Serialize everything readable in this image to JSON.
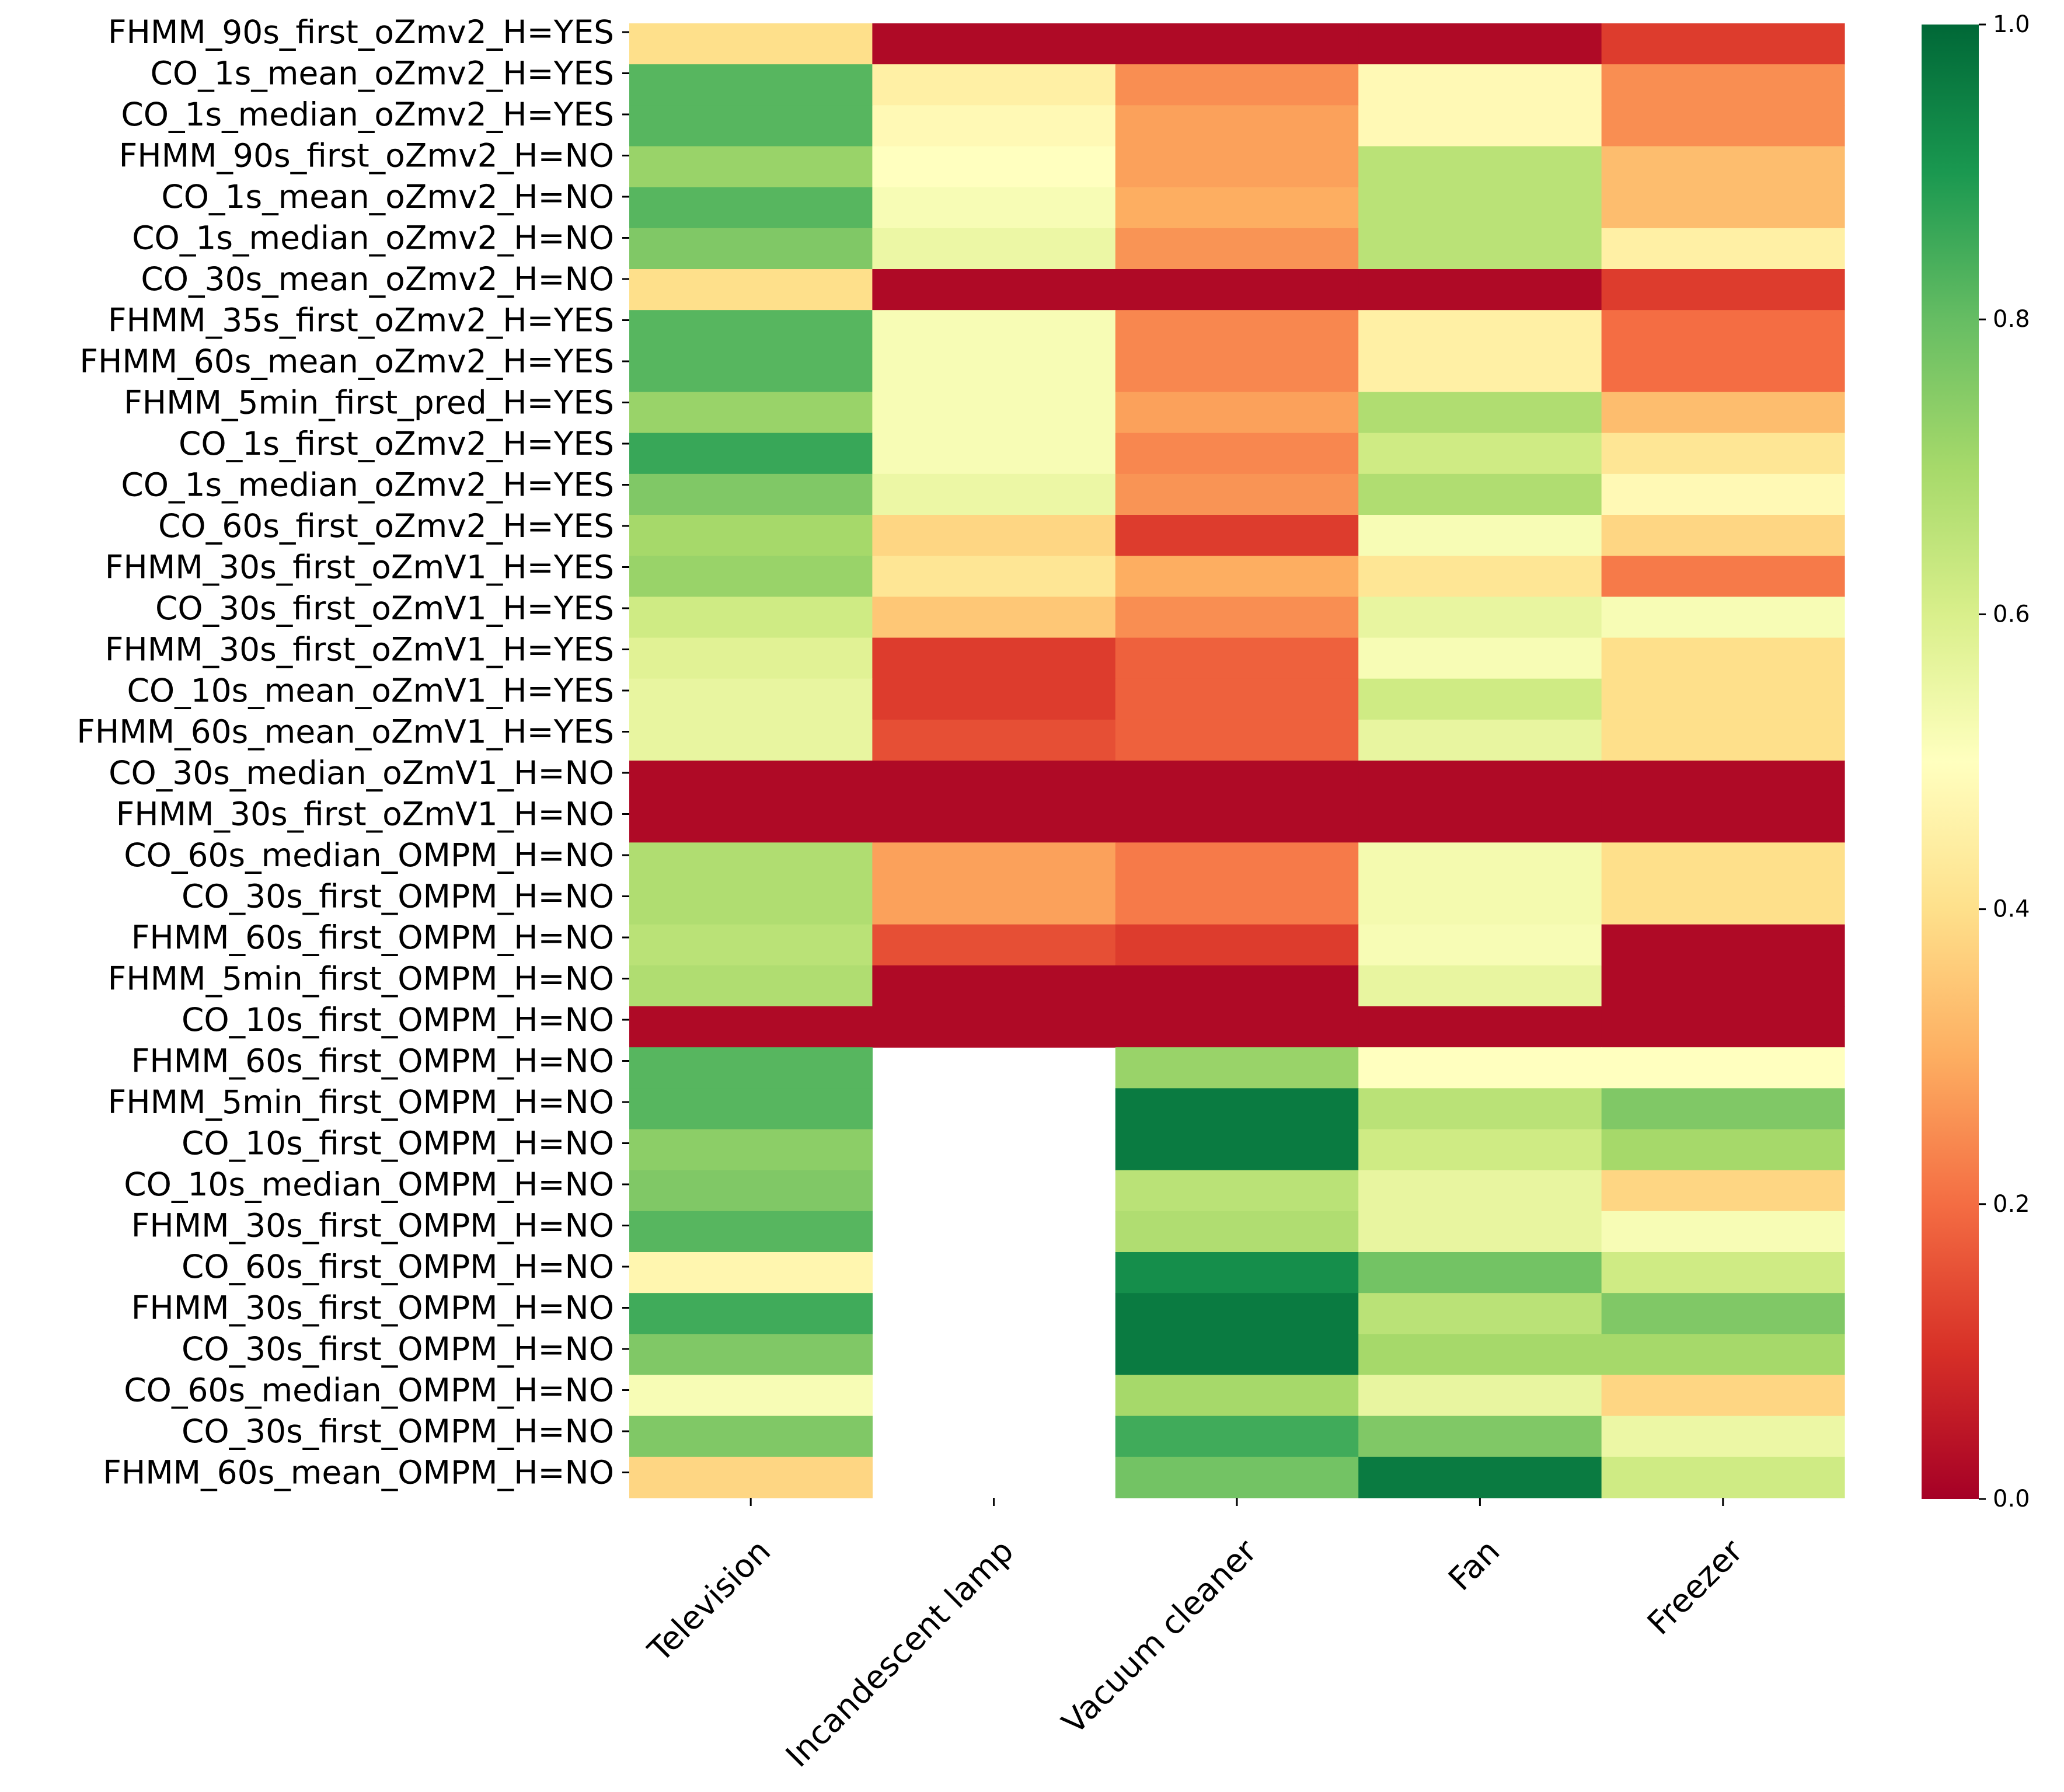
{
  "chart_data": {
    "type": "heatmap",
    "title": "",
    "xlabel": "",
    "ylabel": "",
    "colormap": "RdYlGn",
    "colormap_stops": [
      "#a50026",
      "#d73027",
      "#f46d43",
      "#fdae61",
      "#fee08b",
      "#ffffbf",
      "#d9ef8b",
      "#a6d96a",
      "#66bd63",
      "#1a9850",
      "#006837"
    ],
    "value_range": [
      0.0,
      1.0
    ],
    "colorbar_ticks": [
      "0.0",
      "0.2",
      "0.4",
      "0.6",
      "0.8",
      "1.0"
    ],
    "colorbar_tick_values": [
      0.0,
      0.2,
      0.4,
      0.6,
      0.8,
      1.0
    ],
    "columns": [
      "Television",
      "Incandescent lamp",
      "Vacuum cleaner",
      "Fan",
      "Freezer"
    ],
    "row_labels": [
      "FHMM_90s_first_oZmv2_H=YES",
      "CO_1s_mean_oZmv2_H=YES",
      "CO_1s_median_oZmv2_H=YES",
      "FHMM_90s_first_oZmv2_H=NO",
      "CO_1s_mean_oZmv2_H=NO",
      "CO_1s_median_oZmv2_H=NO",
      "CO_30s_mean_oZmv2_H=NO",
      "FHMM_35s_first_oZmv2_H=YES",
      "FHMM_60s_mean_oZmv2_H=YES",
      "FHMM_5min_first_pred_H=YES",
      "CO_1s_first_oZmv2_H=YES",
      "CO_1s_median_oZmv2_H=YES",
      "CO_60s_first_oZmv2_H=YES",
      "FHMM_30s_first_oZmV1_H=YES",
      "CO_30s_first_oZmV1_H=YES",
      "FHMM_30s_first_oZmV1_H=YES",
      "CO_10s_mean_oZmV1_H=YES",
      "FHMM_60s_mean_oZmV1_H=YES",
      "CO_30s_median_oZmV1_H=NO",
      "FHMM_30s_first_oZmV1_H=NO",
      "CO_60s_median_OMPM_H=NO",
      "CO_30s_first_OMPM_H=NO",
      "FHMM_60s_first_OMPM_H=NO",
      "FHMM_5min_first_OMPM_H=NO",
      "CO_10s_first_OMPM_H=NO",
      "FHMM_60s_first_OMPM_H=NO",
      "FHMM_5min_first_OMPM_H=NO",
      "CO_10s_first_OMPM_H=NO",
      "CO_10s_median_OMPM_H=NO",
      "FHMM_30s_first_OMPM_H=NO",
      "CO_60s_first_OMPM_H=NO",
      "FHMM_30s_first_OMPM_H=NO",
      "CO_30s_first_OMPM_H=NO",
      "CO_60s_median_OMPM_H=NO",
      "CO_30s_first_OMPM_H=NO",
      "FHMM_60s_mean_OMPM_H=NO"
    ],
    "values": [
      [
        0.4,
        0.02,
        0.02,
        0.02,
        0.12
      ],
      [
        0.82,
        0.45,
        0.25,
        0.48,
        0.25
      ],
      [
        0.82,
        0.48,
        0.28,
        0.48,
        0.25
      ],
      [
        0.72,
        0.5,
        0.28,
        0.66,
        0.33
      ],
      [
        0.82,
        0.52,
        0.3,
        0.66,
        0.33
      ],
      [
        0.76,
        0.55,
        0.26,
        0.66,
        0.45
      ],
      [
        0.4,
        0.02,
        0.02,
        0.02,
        0.12
      ],
      [
        0.82,
        0.52,
        0.24,
        0.45,
        0.2
      ],
      [
        0.82,
        0.52,
        0.24,
        0.45,
        0.2
      ],
      [
        0.72,
        0.52,
        0.28,
        0.68,
        0.33
      ],
      [
        0.86,
        0.52,
        0.24,
        0.62,
        0.42
      ],
      [
        0.76,
        0.55,
        0.26,
        0.68,
        0.48
      ],
      [
        0.7,
        0.38,
        0.12,
        0.52,
        0.38
      ],
      [
        0.72,
        0.42,
        0.3,
        0.42,
        0.22
      ],
      [
        0.62,
        0.35,
        0.25,
        0.56,
        0.52
      ],
      [
        0.58,
        0.12,
        0.18,
        0.52,
        0.4
      ],
      [
        0.56,
        0.12,
        0.18,
        0.62,
        0.4
      ],
      [
        0.56,
        0.15,
        0.18,
        0.56,
        0.4
      ],
      [
        0.02,
        0.02,
        0.02,
        0.02,
        0.02
      ],
      [
        0.02,
        0.02,
        0.02,
        0.02,
        0.02
      ],
      [
        0.68,
        0.28,
        0.22,
        0.53,
        0.4
      ],
      [
        0.68,
        0.28,
        0.22,
        0.53,
        0.4
      ],
      [
        0.66,
        0.15,
        0.12,
        0.52,
        0.02
      ],
      [
        0.68,
        0.02,
        0.02,
        0.56,
        0.02
      ],
      [
        0.02,
        0.02,
        0.02,
        0.02,
        0.02
      ],
      [
        0.82,
        null,
        0.72,
        0.5,
        0.5
      ],
      [
        0.82,
        null,
        0.96,
        0.66,
        0.76
      ],
      [
        0.74,
        null,
        0.96,
        0.62,
        0.7
      ],
      [
        0.76,
        null,
        0.66,
        0.56,
        0.38
      ],
      [
        0.82,
        null,
        0.68,
        0.56,
        0.52
      ],
      [
        0.47,
        null,
        0.92,
        0.78,
        0.62
      ],
      [
        0.85,
        null,
        0.96,
        0.66,
        0.76
      ],
      [
        0.76,
        null,
        0.96,
        0.7,
        0.7
      ],
      [
        0.52,
        null,
        0.7,
        0.56,
        0.38
      ],
      [
        0.76,
        null,
        0.85,
        0.76,
        0.55
      ],
      [
        0.38,
        null,
        0.78,
        0.96,
        0.62
      ]
    ]
  }
}
